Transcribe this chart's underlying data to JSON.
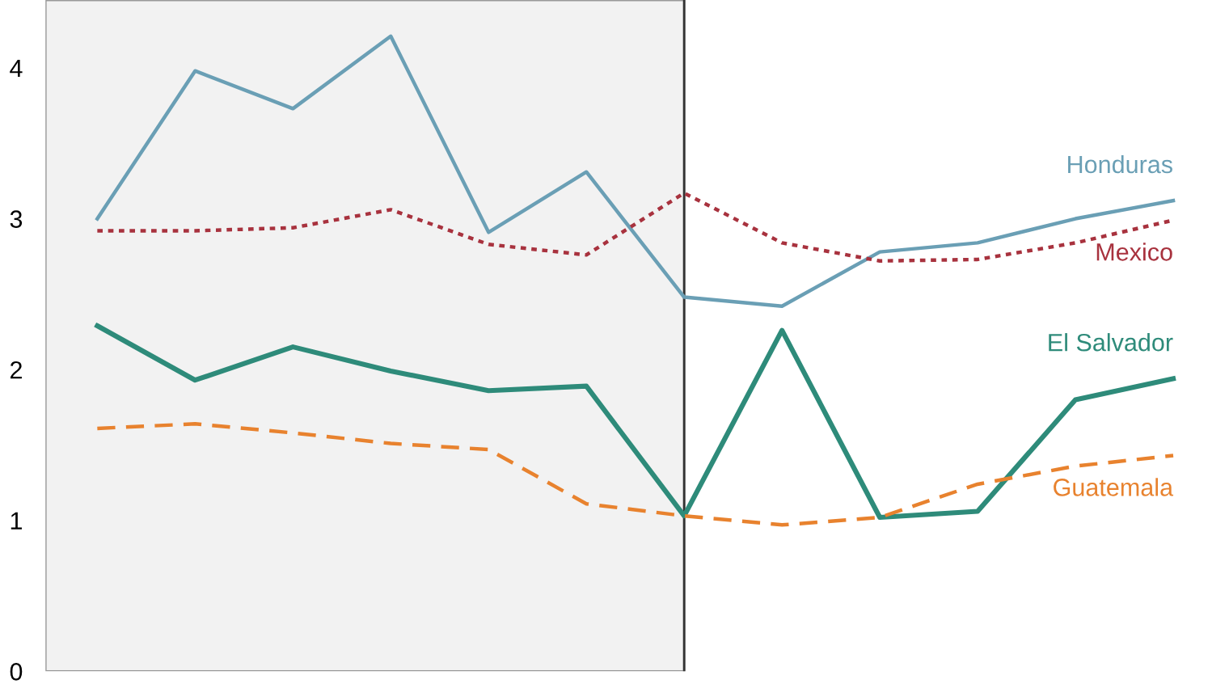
{
  "chart_data": {
    "type": "line",
    "categories": [
      null,
      null,
      null,
      null,
      null,
      null,
      null,
      null,
      null,
      null,
      null,
      null
    ],
    "ylim": [
      0,
      4.45
    ],
    "yticks": [
      0,
      1,
      2,
      3,
      4
    ],
    "tick_labels": "y",
    "grid": false,
    "legend": false,
    "series": [
      {
        "name": "Honduras",
        "color": "#6a9fb5",
        "line_style": "solid",
        "values": [
          3.0,
          3.98,
          3.73,
          4.21,
          2.91,
          3.31,
          2.48,
          2.42,
          2.78,
          2.84,
          3.0,
          3.12
        ]
      },
      {
        "name": "Mexico",
        "color": "#a8323e",
        "line_style": "dotted",
        "values": [
          2.92,
          2.92,
          2.94,
          3.06,
          2.83,
          2.76,
          3.17,
          2.84,
          2.72,
          2.73,
          2.84,
          2.99
        ]
      },
      {
        "name": "El Salvador",
        "color": "#2e8b7a",
        "line_style": "solid",
        "values": [
          2.29,
          1.93,
          2.15,
          1.99,
          1.86,
          1.89,
          1.03,
          2.26,
          1.02,
          1.06,
          1.8,
          1.94
        ]
      },
      {
        "name": "Guatemala",
        "color": "#e8822e",
        "line_style": "dashed",
        "values": [
          1.61,
          1.64,
          1.58,
          1.51,
          1.47,
          1.11,
          1.03,
          0.97,
          1.02,
          1.24,
          1.36,
          1.43
        ]
      }
    ]
  }
}
